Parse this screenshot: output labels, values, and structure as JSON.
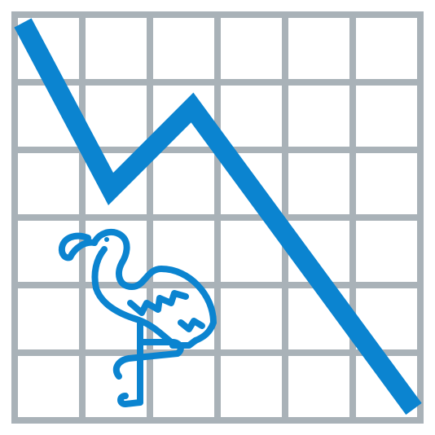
{
  "icon": {
    "name": "declining-chart-with-flamingo-icon",
    "colors": {
      "grid": "#a9b2b8",
      "line": "#0b84d0",
      "flamingo_outline": "#0b84d0",
      "background": "#ffffff"
    },
    "grid": {
      "columns": 6,
      "rows": 6
    },
    "trend": "declining",
    "line_shape": [
      "down",
      "up",
      "down"
    ]
  }
}
